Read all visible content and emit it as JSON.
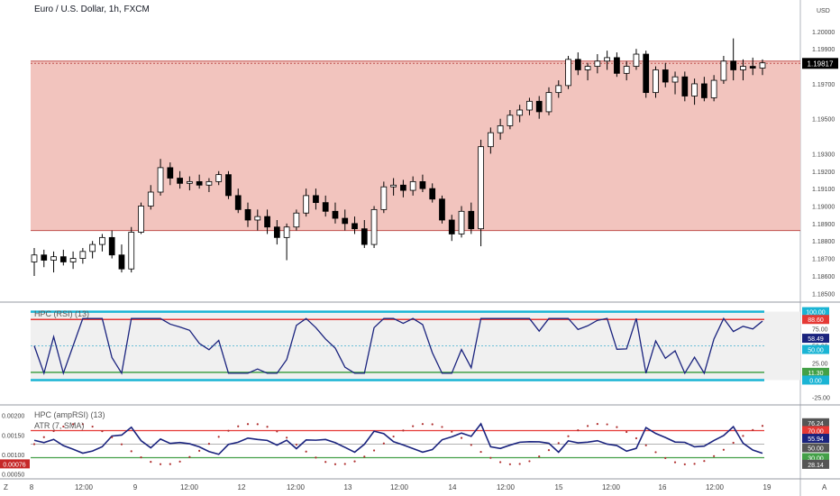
{
  "header": {
    "symbol_title": "Euro / U.S. Dollar, 1h, FXCM"
  },
  "colors": {
    "zone_fill": "#f2c4be",
    "zone_line": "#c0504d",
    "up_candle": "#ffffff",
    "down_candle": "#000000",
    "indicator_line": "#1a237e",
    "band_cyan": "#1ab4d4",
    "band_red": "#e53935",
    "band_green": "#43a047",
    "price_badge": "#000000",
    "ampsi_dots": "#b03030"
  },
  "price_axis": {
    "unit": "USD",
    "ticks": [
      "1.20000",
      "1.19900",
      "1.19700",
      "1.19500",
      "1.19300",
      "1.19200",
      "1.19100",
      "1.19000",
      "1.18900",
      "1.18800",
      "1.18700",
      "1.18600",
      "1.18500"
    ],
    "current": "1.19817"
  },
  "time_axis": {
    "labels": [
      "8",
      "12:00",
      "9",
      "12:00",
      "12",
      "12:00",
      "13",
      "12:00",
      "14",
      "12:00",
      "15",
      "12:00",
      "16",
      "12:00",
      "19"
    ],
    "left_corner": "Z",
    "right_corner": "A"
  },
  "rsi_panel": {
    "title": "HPC (RSI) (13)",
    "ticks": [
      "75.00",
      "50.00",
      "25.00",
      "-25.00"
    ],
    "badges": [
      "100.00",
      "88.60",
      "58.49",
      "50.00",
      "11.30",
      "0.00"
    ]
  },
  "ampsi_panel": {
    "title": "HPC (ampRSI) (13)",
    "subtitle": "ATR (7, SMA)",
    "ticks": [
      "0.00200",
      "0.00150",
      "0.00100",
      "0.00050"
    ],
    "left_badge": "0.00076",
    "badges": [
      "76.24",
      "70.00",
      "55.94",
      "50.00",
      "30.00",
      "28.14"
    ]
  },
  "chart_data": {
    "type": "candlestick",
    "title": "Euro / U.S. Dollar, 1h, FXCM",
    "ylabel": "USD",
    "ylim": [
      1.1845,
      1.2018
    ],
    "resistance_zone": [
      1.1886,
      1.1983
    ],
    "last_price": 1.19817,
    "candles": [
      [
        1.1868,
        1.1876,
        1.186,
        1.1872
      ],
      [
        1.1872,
        1.1875,
        1.1865,
        1.1869
      ],
      [
        1.1869,
        1.1874,
        1.1862,
        1.1871
      ],
      [
        1.1871,
        1.1875,
        1.1866,
        1.1868
      ],
      [
        1.1868,
        1.1874,
        1.1864,
        1.187
      ],
      [
        1.187,
        1.1876,
        1.1867,
        1.1874
      ],
      [
        1.1874,
        1.188,
        1.187,
        1.1878
      ],
      [
        1.1878,
        1.1884,
        1.1874,
        1.1882
      ],
      [
        1.1882,
        1.1886,
        1.187,
        1.1872
      ],
      [
        1.1872,
        1.1878,
        1.1862,
        1.1864
      ],
      [
        1.1864,
        1.1888,
        1.1862,
        1.1885
      ],
      [
        1.1885,
        1.1902,
        1.1884,
        1.19
      ],
      [
        1.19,
        1.1912,
        1.1898,
        1.1908
      ],
      [
        1.1908,
        1.1927,
        1.1906,
        1.1922
      ],
      [
        1.1922,
        1.1925,
        1.1912,
        1.1916
      ],
      [
        1.1916,
        1.192,
        1.191,
        1.1913
      ],
      [
        1.1913,
        1.1917,
        1.1909,
        1.1914
      ],
      [
        1.1914,
        1.1918,
        1.191,
        1.1912
      ],
      [
        1.1912,
        1.1916,
        1.1908,
        1.1914
      ],
      [
        1.1914,
        1.192,
        1.1912,
        1.1918
      ],
      [
        1.1918,
        1.192,
        1.1904,
        1.1906
      ],
      [
        1.1906,
        1.191,
        1.1896,
        1.1898
      ],
      [
        1.1898,
        1.1902,
        1.1888,
        1.1892
      ],
      [
        1.1892,
        1.1898,
        1.1886,
        1.1894
      ],
      [
        1.1894,
        1.1898,
        1.1884,
        1.1888
      ],
      [
        1.1888,
        1.1892,
        1.1878,
        1.1882
      ],
      [
        1.1882,
        1.189,
        1.1869,
        1.1888
      ],
      [
        1.1888,
        1.1898,
        1.1886,
        1.1896
      ],
      [
        1.1896,
        1.191,
        1.1894,
        1.1906
      ],
      [
        1.1906,
        1.191,
        1.1898,
        1.1902
      ],
      [
        1.1902,
        1.1906,
        1.1894,
        1.1897
      ],
      [
        1.1897,
        1.1902,
        1.189,
        1.1893
      ],
      [
        1.1893,
        1.1898,
        1.1886,
        1.189
      ],
      [
        1.189,
        1.1894,
        1.1884,
        1.1887
      ],
      [
        1.1887,
        1.1892,
        1.1876,
        1.1878
      ],
      [
        1.1878,
        1.19,
        1.1876,
        1.1898
      ],
      [
        1.1898,
        1.1914,
        1.1896,
        1.1911
      ],
      [
        1.1911,
        1.1916,
        1.1906,
        1.1912
      ],
      [
        1.1912,
        1.1915,
        1.1905,
        1.1909
      ],
      [
        1.1909,
        1.1917,
        1.1906,
        1.1914
      ],
      [
        1.1914,
        1.1918,
        1.1908,
        1.191
      ],
      [
        1.191,
        1.1913,
        1.1902,
        1.1904
      ],
      [
        1.1904,
        1.1906,
        1.189,
        1.1892
      ],
      [
        1.1892,
        1.1895,
        1.188,
        1.1884
      ],
      [
        1.1884,
        1.19,
        1.1882,
        1.1897
      ],
      [
        1.1897,
        1.1902,
        1.1884,
        1.1887
      ],
      [
        1.1887,
        1.1938,
        1.1877,
        1.1934
      ],
      [
        1.1934,
        1.1945,
        1.193,
        1.1942
      ],
      [
        1.1942,
        1.195,
        1.1938,
        1.1946
      ],
      [
        1.1946,
        1.1955,
        1.1944,
        1.1952
      ],
      [
        1.1952,
        1.1958,
        1.1948,
        1.1955
      ],
      [
        1.1955,
        1.1962,
        1.1952,
        1.196
      ],
      [
        1.196,
        1.1963,
        1.195,
        1.1954
      ],
      [
        1.1954,
        1.1968,
        1.1952,
        1.1965
      ],
      [
        1.1965,
        1.1972,
        1.1962,
        1.1969
      ],
      [
        1.1969,
        1.1986,
        1.1967,
        1.1984
      ],
      [
        1.1984,
        1.1988,
        1.1975,
        1.1978
      ],
      [
        1.1978,
        1.1982,
        1.1972,
        1.198
      ],
      [
        1.198,
        1.1987,
        1.1976,
        1.1983
      ],
      [
        1.1983,
        1.1989,
        1.1978,
        1.1985
      ],
      [
        1.1985,
        1.1988,
        1.1974,
        1.1976
      ],
      [
        1.1976,
        1.1983,
        1.1972,
        1.198
      ],
      [
        1.198,
        1.199,
        1.1978,
        1.1987
      ],
      [
        1.1987,
        1.1989,
        1.1962,
        1.1965
      ],
      [
        1.1965,
        1.198,
        1.1962,
        1.1978
      ],
      [
        1.1978,
        1.1982,
        1.1968,
        1.1971
      ],
      [
        1.1971,
        1.1977,
        1.1964,
        1.1974
      ],
      [
        1.1974,
        1.1977,
        1.196,
        1.1963
      ],
      [
        1.1963,
        1.1973,
        1.1958,
        1.197
      ],
      [
        1.197,
        1.1974,
        1.196,
        1.1962
      ],
      [
        1.1962,
        1.1975,
        1.196,
        1.1972
      ],
      [
        1.1972,
        1.1986,
        1.197,
        1.1983
      ],
      [
        1.1983,
        1.1996,
        1.1972,
        1.1978
      ],
      [
        1.1978,
        1.1984,
        1.1972,
        1.198
      ],
      [
        1.198,
        1.1985,
        1.1975,
        1.1979
      ],
      [
        1.1979,
        1.1984,
        1.1975,
        1.1982
      ]
    ],
    "rsi": {
      "ylim": [
        -35,
        110
      ],
      "levels": {
        "cyan_top": 100,
        "red": 88.6,
        "mid": 50,
        "green": 11.3,
        "cyan_bottom": 0
      },
      "last": 58.49
    },
    "ampsi": {
      "ylim": [
        0.0004,
        0.00222
      ],
      "last": 0.00076,
      "levels": {
        "red": 70,
        "mid": 50,
        "green": 30
      },
      "last_value": 55.94
    }
  }
}
